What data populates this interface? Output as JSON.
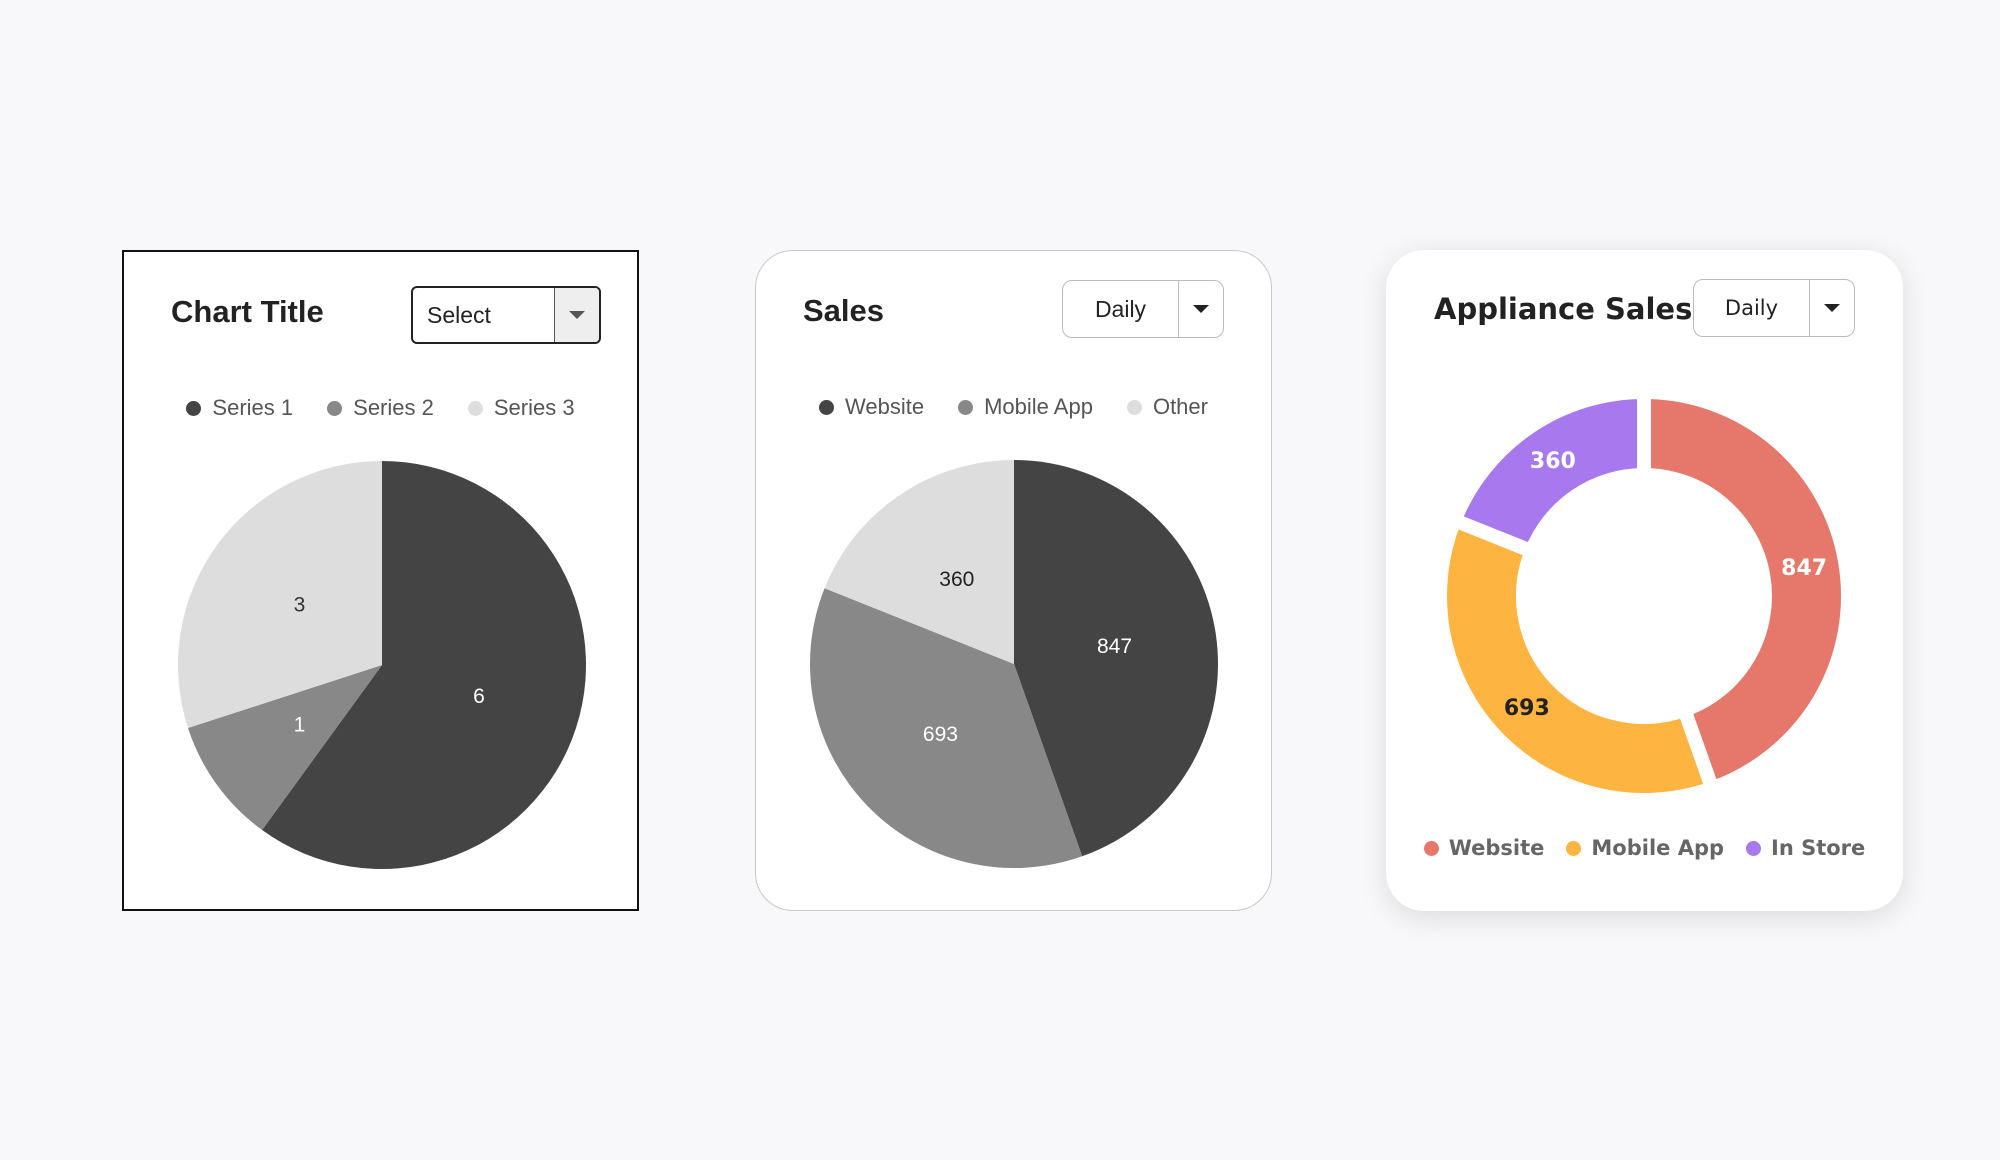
{
  "cards": [
    {
      "title": "Chart Title",
      "select_value": "Select",
      "legend": [
        {
          "label": "Series 1",
          "color": "#444444"
        },
        {
          "label": "Series 2",
          "color": "#888888"
        },
        {
          "label": "Series 3",
          "color": "#dddddd"
        }
      ]
    },
    {
      "title": "Sales",
      "select_value": "Daily",
      "legend": [
        {
          "label": "Website",
          "color": "#444444"
        },
        {
          "label": "Mobile App",
          "color": "#888888"
        },
        {
          "label": "Other",
          "color": "#dddddd"
        }
      ]
    },
    {
      "title": "Appliance Sales",
      "select_value": "Daily",
      "legend": [
        {
          "label": "Website",
          "color": "#e5776b"
        },
        {
          "label": "Mobile App",
          "color": "#fdb441"
        },
        {
          "label": "In Store",
          "color": "#a878ee"
        }
      ]
    }
  ],
  "chart_data": [
    {
      "type": "pie",
      "title": "Chart Title",
      "categories": [
        "Series 1",
        "Series 2",
        "Series 3"
      ],
      "values": [
        6,
        1,
        3
      ],
      "colors": [
        "#444444",
        "#888888",
        "#dddddd"
      ],
      "label_colors": [
        "#ffffff",
        "#ffffff",
        "#333333"
      ],
      "data_labels": [
        "6",
        "1",
        "3"
      ],
      "legend": "top"
    },
    {
      "type": "pie",
      "title": "Sales",
      "categories": [
        "Website",
        "Mobile App",
        "Other"
      ],
      "values": [
        847,
        693,
        360
      ],
      "colors": [
        "#444444",
        "#888888",
        "#dddddd"
      ],
      "label_colors": [
        "#ffffff",
        "#ffffff",
        "#222222"
      ],
      "data_labels": [
        "847",
        "693",
        "360"
      ],
      "legend": "top"
    },
    {
      "type": "donut",
      "title": "Appliance Sales",
      "categories": [
        "Website",
        "Mobile App",
        "In Store"
      ],
      "values": [
        847,
        693,
        360
      ],
      "colors": [
        "#e5776b",
        "#fdb441",
        "#a878ee"
      ],
      "label_colors": [
        "#ffffff",
        "#222222",
        "#ffffff"
      ],
      "data_labels": [
        "847",
        "693",
        "360"
      ],
      "legend": "bottom"
    }
  ]
}
